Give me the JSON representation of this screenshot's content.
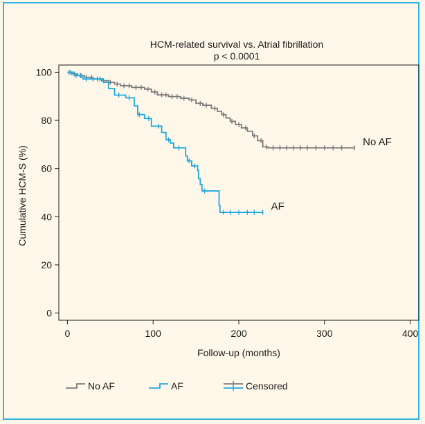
{
  "chart_data": {
    "type": "line",
    "title": "HCM-related survival vs. Atrial fibrillation",
    "subtitle": "p < 0.0001",
    "xlabel": "Follow-up (months)",
    "ylabel": "Cumulative HCM-S (%)",
    "xlim": [
      -10,
      410
    ],
    "ylim": [
      -3,
      103
    ],
    "xticks": [
      0,
      100,
      200,
      300,
      400
    ],
    "yticks": [
      0,
      20,
      40,
      60,
      80,
      100
    ],
    "grid": false,
    "legend_position": "bottom-left",
    "series": [
      {
        "name": "No AF",
        "color": "#7b7b7b",
        "end_label": "No AF",
        "steps": [
          [
            0,
            100
          ],
          [
            5,
            99.3
          ],
          [
            12,
            98.6
          ],
          [
            20,
            97.9
          ],
          [
            30,
            97.2
          ],
          [
            40,
            96.5
          ],
          [
            48,
            95.8
          ],
          [
            55,
            95.1
          ],
          [
            62,
            94.4
          ],
          [
            75,
            93.7
          ],
          [
            90,
            93.0
          ],
          [
            98,
            91.8
          ],
          [
            105,
            90.6
          ],
          [
            118,
            89.9
          ],
          [
            132,
            89.2
          ],
          [
            142,
            88.5
          ],
          [
            150,
            87.1
          ],
          [
            158,
            86.3
          ],
          [
            168,
            85.0
          ],
          [
            175,
            83.8
          ],
          [
            180,
            82.4
          ],
          [
            185,
            81.0
          ],
          [
            190,
            79.6
          ],
          [
            196,
            78.3
          ],
          [
            203,
            76.9
          ],
          [
            210,
            75.5
          ],
          [
            216,
            73.6
          ],
          [
            222,
            71.6
          ],
          [
            228,
            69.0
          ],
          [
            234,
            68.6
          ],
          [
            335,
            68.6
          ]
        ],
        "censored": [
          2,
          8,
          15,
          22,
          28,
          35,
          42,
          50,
          58,
          66,
          72,
          80,
          86,
          94,
          102,
          110,
          115,
          122,
          128,
          136,
          145,
          155,
          162,
          172,
          182,
          192,
          200,
          208,
          218,
          226,
          232,
          240,
          248,
          256,
          264,
          272,
          280,
          290,
          300,
          310,
          320,
          335
        ]
      },
      {
        "name": "AF",
        "color": "#1ea8de",
        "end_label": "AF",
        "steps": [
          [
            0,
            100
          ],
          [
            8,
            98.6
          ],
          [
            18,
            97.2
          ],
          [
            42,
            95.8
          ],
          [
            48,
            93.2
          ],
          [
            55,
            90.5
          ],
          [
            68,
            89.4
          ],
          [
            78,
            86.0
          ],
          [
            82,
            82.4
          ],
          [
            90,
            80.8
          ],
          [
            98,
            77.6
          ],
          [
            110,
            75.0
          ],
          [
            115,
            72.0
          ],
          [
            120,
            70.6
          ],
          [
            124,
            68.6
          ],
          [
            138,
            65.2
          ],
          [
            140,
            63.2
          ],
          [
            145,
            61.1
          ],
          [
            152,
            59.2
          ],
          [
            153,
            55.8
          ],
          [
            155,
            53.4
          ],
          [
            157,
            50.7
          ],
          [
            177,
            44.7
          ],
          [
            178,
            41.8
          ],
          [
            228,
            41.8
          ]
        ],
        "censored": [
          4,
          10,
          16,
          22,
          30,
          38,
          60,
          72,
          84,
          95,
          106,
          118,
          130,
          142,
          148,
          160,
          182,
          190,
          200,
          210,
          218,
          228
        ]
      }
    ],
    "legend": {
      "items": [
        {
          "label": "No AF",
          "color": "#7b7b7b"
        },
        {
          "label": "AF",
          "color": "#1ea8de"
        },
        {
          "label": "Censored",
          "colors": [
            "#7b7b7b",
            "#1ea8de"
          ]
        }
      ]
    }
  }
}
